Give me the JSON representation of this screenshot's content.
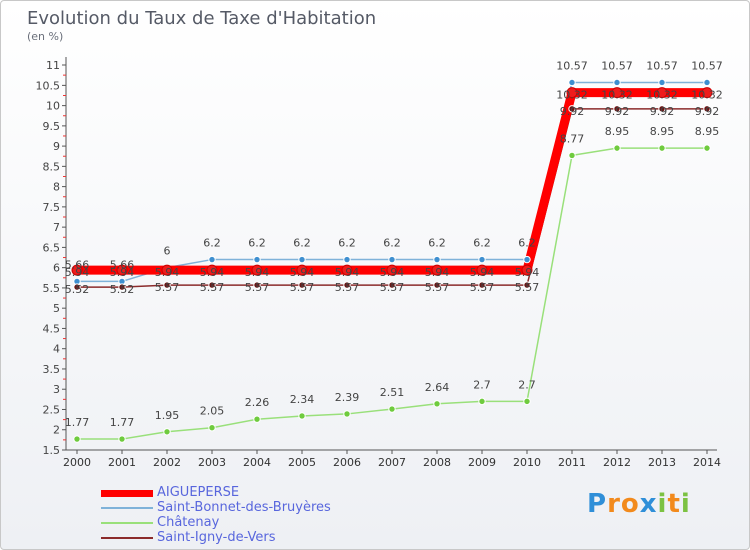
{
  "chart_data": {
    "type": "line",
    "title": "Evolution du Taux de Taxe d'Habitation",
    "subtitle": "(en %)",
    "x": [
      "2000",
      "2001",
      "2002",
      "2003",
      "2004",
      "2005",
      "2006",
      "2007",
      "2008",
      "2009",
      "2010",
      "2011",
      "2012",
      "2013",
      "2014"
    ],
    "y_ticks": [
      "1.5",
      "2",
      "2.5",
      "3",
      "3.5",
      "4",
      "4.5",
      "5",
      "5.5",
      "6",
      "6.5",
      "7",
      "7.5",
      "8",
      "8.5",
      "9",
      "9.5",
      "10",
      "10.5",
      "11"
    ],
    "ylim": [
      1.5,
      11.1
    ],
    "grid": false,
    "legend_position": "bottom-left",
    "series": [
      {
        "name": "AIGUEPERSE",
        "color": "#ff0000",
        "marker": "#ee1c1c",
        "values": [
          5.94,
          5.94,
          5.94,
          5.94,
          5.94,
          5.94,
          5.94,
          5.94,
          5.94,
          5.94,
          5.94,
          10.32,
          10.32,
          10.32,
          10.32
        ],
        "labels": [
          "5.94",
          "5.94",
          "5.94",
          "5.94",
          "5.94",
          "5.94",
          "5.94",
          "5.94",
          "5.94",
          "5.94",
          "5.94",
          "10.32",
          "10.32",
          "10.32",
          "10.32"
        ]
      },
      {
        "name": "Saint-Bonnet-des-Bruyères",
        "color": "#7fb2d9",
        "marker": "#3e8fd0",
        "values": [
          5.66,
          5.66,
          6,
          6.2,
          6.2,
          6.2,
          6.2,
          6.2,
          6.2,
          6.2,
          6.2,
          10.57,
          10.57,
          10.57,
          10.57
        ],
        "labels": [
          "5.66",
          "5.66",
          "6",
          "6.2",
          "6.2",
          "6.2",
          "6.2",
          "6.2",
          "6.2",
          "6.2",
          "6.2",
          "10.57",
          "10.57",
          "10.57",
          "10.57"
        ]
      },
      {
        "name": "Châtenay",
        "color": "#99e07a",
        "marker": "#6fcb3e",
        "values": [
          1.77,
          1.77,
          1.95,
          2.05,
          2.26,
          2.34,
          2.39,
          2.51,
          2.64,
          2.7,
          2.7,
          8.77,
          8.95,
          8.95,
          8.95
        ],
        "labels": [
          "1.77",
          "1.77",
          "1.95",
          "2.05",
          "2.26",
          "2.34",
          "2.39",
          "2.51",
          "2.64",
          "2.7",
          "2.7",
          "8.77",
          "8.95",
          "8.95",
          "8.95"
        ]
      },
      {
        "name": "Saint-Igny-de-Vers",
        "color": "#8b2b2b",
        "marker": "#6a1616",
        "values": [
          5.52,
          5.52,
          5.57,
          5.57,
          5.57,
          5.57,
          5.57,
          5.57,
          5.57,
          5.57,
          5.57,
          9.92,
          9.92,
          9.92,
          9.92
        ],
        "labels": [
          "5.52",
          "5.52",
          "5.57",
          "5.57",
          "5.57",
          "5.57",
          "5.57",
          "5.57",
          "5.57",
          "5.57",
          "5.57",
          "9.92",
          "9.92",
          "9.92",
          "9.92"
        ]
      }
    ]
  },
  "brand": {
    "text": "Proxiti",
    "letters": [
      {
        "ch": "P",
        "color": "#2f8fd8"
      },
      {
        "ch": "r",
        "color": "#f28a1c"
      },
      {
        "ch": "o",
        "color": "#f28a1c"
      },
      {
        "ch": "x",
        "color": "#2f8fd8"
      },
      {
        "ch": "i",
        "color": "#7cc242"
      },
      {
        "ch": "t",
        "color": "#f28a1c"
      },
      {
        "ch": "i",
        "color": "#7cc242"
      }
    ]
  }
}
